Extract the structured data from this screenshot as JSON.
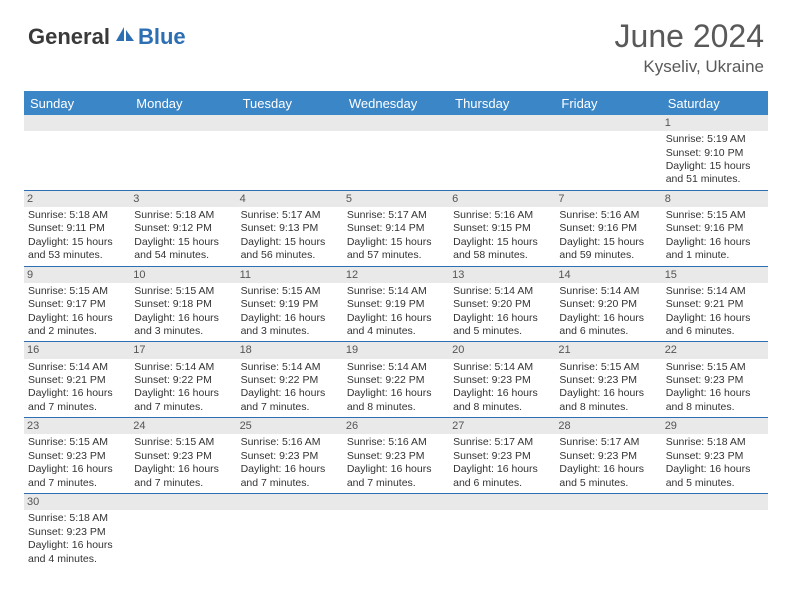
{
  "brand": {
    "text_dark": "General",
    "text_blue": "Blue"
  },
  "title": "June 2024",
  "location": "Kyseliv, Ukraine",
  "colors": {
    "header_bg": "#3b86c7",
    "header_text": "#ffffff",
    "daynum_bg": "#e9e9e9",
    "row_border": "#2d6fb3",
    "title_color": "#595959",
    "brand_blue": "#2d6fb3",
    "brand_dark": "#3a3a3a"
  },
  "weekdays": [
    "Sunday",
    "Monday",
    "Tuesday",
    "Wednesday",
    "Thursday",
    "Friday",
    "Saturday"
  ],
  "weeks": [
    [
      {
        "day": "",
        "lines": []
      },
      {
        "day": "",
        "lines": []
      },
      {
        "day": "",
        "lines": []
      },
      {
        "day": "",
        "lines": []
      },
      {
        "day": "",
        "lines": []
      },
      {
        "day": "",
        "lines": []
      },
      {
        "day": "1",
        "lines": [
          "Sunrise: 5:19 AM",
          "Sunset: 9:10 PM",
          "Daylight: 15 hours",
          "and 51 minutes."
        ]
      }
    ],
    [
      {
        "day": "2",
        "lines": [
          "Sunrise: 5:18 AM",
          "Sunset: 9:11 PM",
          "Daylight: 15 hours",
          "and 53 minutes."
        ]
      },
      {
        "day": "3",
        "lines": [
          "Sunrise: 5:18 AM",
          "Sunset: 9:12 PM",
          "Daylight: 15 hours",
          "and 54 minutes."
        ]
      },
      {
        "day": "4",
        "lines": [
          "Sunrise: 5:17 AM",
          "Sunset: 9:13 PM",
          "Daylight: 15 hours",
          "and 56 minutes."
        ]
      },
      {
        "day": "5",
        "lines": [
          "Sunrise: 5:17 AM",
          "Sunset: 9:14 PM",
          "Daylight: 15 hours",
          "and 57 minutes."
        ]
      },
      {
        "day": "6",
        "lines": [
          "Sunrise: 5:16 AM",
          "Sunset: 9:15 PM",
          "Daylight: 15 hours",
          "and 58 minutes."
        ]
      },
      {
        "day": "7",
        "lines": [
          "Sunrise: 5:16 AM",
          "Sunset: 9:16 PM",
          "Daylight: 15 hours",
          "and 59 minutes."
        ]
      },
      {
        "day": "8",
        "lines": [
          "Sunrise: 5:15 AM",
          "Sunset: 9:16 PM",
          "Daylight: 16 hours",
          "and 1 minute."
        ]
      }
    ],
    [
      {
        "day": "9",
        "lines": [
          "Sunrise: 5:15 AM",
          "Sunset: 9:17 PM",
          "Daylight: 16 hours",
          "and 2 minutes."
        ]
      },
      {
        "day": "10",
        "lines": [
          "Sunrise: 5:15 AM",
          "Sunset: 9:18 PM",
          "Daylight: 16 hours",
          "and 3 minutes."
        ]
      },
      {
        "day": "11",
        "lines": [
          "Sunrise: 5:15 AM",
          "Sunset: 9:19 PM",
          "Daylight: 16 hours",
          "and 3 minutes."
        ]
      },
      {
        "day": "12",
        "lines": [
          "Sunrise: 5:14 AM",
          "Sunset: 9:19 PM",
          "Daylight: 16 hours",
          "and 4 minutes."
        ]
      },
      {
        "day": "13",
        "lines": [
          "Sunrise: 5:14 AM",
          "Sunset: 9:20 PM",
          "Daylight: 16 hours",
          "and 5 minutes."
        ]
      },
      {
        "day": "14",
        "lines": [
          "Sunrise: 5:14 AM",
          "Sunset: 9:20 PM",
          "Daylight: 16 hours",
          "and 6 minutes."
        ]
      },
      {
        "day": "15",
        "lines": [
          "Sunrise: 5:14 AM",
          "Sunset: 9:21 PM",
          "Daylight: 16 hours",
          "and 6 minutes."
        ]
      }
    ],
    [
      {
        "day": "16",
        "lines": [
          "Sunrise: 5:14 AM",
          "Sunset: 9:21 PM",
          "Daylight: 16 hours",
          "and 7 minutes."
        ]
      },
      {
        "day": "17",
        "lines": [
          "Sunrise: 5:14 AM",
          "Sunset: 9:22 PM",
          "Daylight: 16 hours",
          "and 7 minutes."
        ]
      },
      {
        "day": "18",
        "lines": [
          "Sunrise: 5:14 AM",
          "Sunset: 9:22 PM",
          "Daylight: 16 hours",
          "and 7 minutes."
        ]
      },
      {
        "day": "19",
        "lines": [
          "Sunrise: 5:14 AM",
          "Sunset: 9:22 PM",
          "Daylight: 16 hours",
          "and 8 minutes."
        ]
      },
      {
        "day": "20",
        "lines": [
          "Sunrise: 5:14 AM",
          "Sunset: 9:23 PM",
          "Daylight: 16 hours",
          "and 8 minutes."
        ]
      },
      {
        "day": "21",
        "lines": [
          "Sunrise: 5:15 AM",
          "Sunset: 9:23 PM",
          "Daylight: 16 hours",
          "and 8 minutes."
        ]
      },
      {
        "day": "22",
        "lines": [
          "Sunrise: 5:15 AM",
          "Sunset: 9:23 PM",
          "Daylight: 16 hours",
          "and 8 minutes."
        ]
      }
    ],
    [
      {
        "day": "23",
        "lines": [
          "Sunrise: 5:15 AM",
          "Sunset: 9:23 PM",
          "Daylight: 16 hours",
          "and 7 minutes."
        ]
      },
      {
        "day": "24",
        "lines": [
          "Sunrise: 5:15 AM",
          "Sunset: 9:23 PM",
          "Daylight: 16 hours",
          "and 7 minutes."
        ]
      },
      {
        "day": "25",
        "lines": [
          "Sunrise: 5:16 AM",
          "Sunset: 9:23 PM",
          "Daylight: 16 hours",
          "and 7 minutes."
        ]
      },
      {
        "day": "26",
        "lines": [
          "Sunrise: 5:16 AM",
          "Sunset: 9:23 PM",
          "Daylight: 16 hours",
          "and 7 minutes."
        ]
      },
      {
        "day": "27",
        "lines": [
          "Sunrise: 5:17 AM",
          "Sunset: 9:23 PM",
          "Daylight: 16 hours",
          "and 6 minutes."
        ]
      },
      {
        "day": "28",
        "lines": [
          "Sunrise: 5:17 AM",
          "Sunset: 9:23 PM",
          "Daylight: 16 hours",
          "and 5 minutes."
        ]
      },
      {
        "day": "29",
        "lines": [
          "Sunrise: 5:18 AM",
          "Sunset: 9:23 PM",
          "Daylight: 16 hours",
          "and 5 minutes."
        ]
      }
    ],
    [
      {
        "day": "30",
        "lines": [
          "Sunrise: 5:18 AM",
          "Sunset: 9:23 PM",
          "Daylight: 16 hours",
          "and 4 minutes."
        ]
      },
      {
        "day": "",
        "lines": []
      },
      {
        "day": "",
        "lines": []
      },
      {
        "day": "",
        "lines": []
      },
      {
        "day": "",
        "lines": []
      },
      {
        "day": "",
        "lines": []
      },
      {
        "day": "",
        "lines": []
      }
    ]
  ]
}
